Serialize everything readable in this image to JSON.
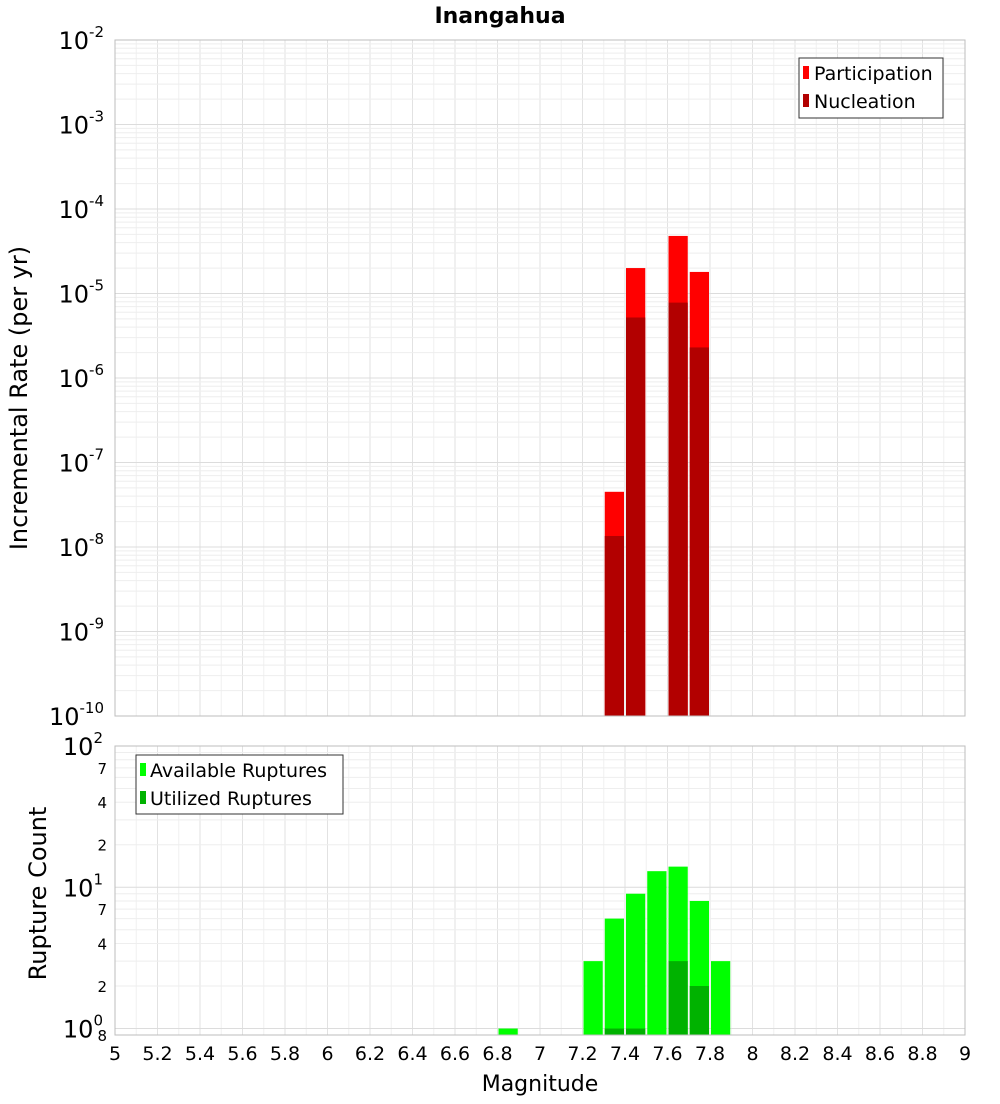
{
  "chart_data": [
    {
      "type": "bar",
      "title": "Inangahua",
      "xlabel": "",
      "ylabel": "Incremental Rate (per yr)",
      "y_scale": "log",
      "ylim": [
        1e-10,
        0.01
      ],
      "xlim": [
        5,
        9
      ],
      "y_tick_exponents": [
        "-2",
        "-3",
        "-4",
        "-5",
        "-6",
        "-7",
        "-8",
        "-9",
        "-10"
      ],
      "y_tick_base": "10",
      "legend_position": "top-right",
      "overlay": true,
      "bin_width": 0.1,
      "series": [
        {
          "name": "Participation",
          "color": "#ff0000",
          "points": [
            {
              "x": 7.35,
              "y": 4.5e-08
            },
            {
              "x": 7.45,
              "y": 2e-05
            },
            {
              "x": 7.65,
              "y": 4.8e-05
            },
            {
              "x": 7.75,
              "y": 1.8e-05
            }
          ]
        },
        {
          "name": "Nucleation",
          "color": "#b20000",
          "points": [
            {
              "x": 7.35,
              "y": 1.35e-08
            },
            {
              "x": 7.45,
              "y": 5.2e-06
            },
            {
              "x": 7.65,
              "y": 7.8e-06
            },
            {
              "x": 7.75,
              "y": 2.3e-06
            }
          ]
        }
      ]
    },
    {
      "type": "bar",
      "title": "",
      "xlabel": "Magnitude",
      "ylabel": "Rupture Count",
      "y_scale": "log",
      "ylim": [
        0.9,
        100
      ],
      "xlim": [
        5,
        9
      ],
      "x_ticks": [
        "5",
        "5.2",
        "5.4",
        "5.6",
        "5.8",
        "6",
        "6.2",
        "6.4",
        "6.6",
        "6.8",
        "7",
        "7.2",
        "7.4",
        "7.6",
        "7.8",
        "8",
        "8.2",
        "8.4",
        "8.6",
        "8.8",
        "9"
      ],
      "y_tick_labels": [
        {
          "value": 100,
          "base": "10",
          "exp": "2"
        },
        {
          "value": 10,
          "base": "10",
          "exp": "1"
        },
        {
          "value": 1,
          "base": "10",
          "exp": "0"
        }
      ],
      "y_minor_labels": [
        {
          "value": 70,
          "label": "7"
        },
        {
          "value": 40,
          "label": "4"
        },
        {
          "value": 20,
          "label": "2"
        },
        {
          "value": 7,
          "label": "7"
        },
        {
          "value": 4,
          "label": "4"
        },
        {
          "value": 2,
          "label": "2"
        },
        {
          "value": 0.9,
          "label": "8"
        }
      ],
      "legend_position": "top-left",
      "overlay": true,
      "bin_width": 0.1,
      "series": [
        {
          "name": "Available Ruptures",
          "color": "#00ff00",
          "points": [
            {
              "x": 6.85,
              "y": 1
            },
            {
              "x": 7.25,
              "y": 3
            },
            {
              "x": 7.35,
              "y": 6
            },
            {
              "x": 7.45,
              "y": 9
            },
            {
              "x": 7.55,
              "y": 13
            },
            {
              "x": 7.65,
              "y": 14
            },
            {
              "x": 7.75,
              "y": 8
            },
            {
              "x": 7.85,
              "y": 3
            }
          ]
        },
        {
          "name": "Utilized Ruptures",
          "color": "#00b200",
          "points": [
            {
              "x": 7.35,
              "y": 1
            },
            {
              "x": 7.45,
              "y": 1
            },
            {
              "x": 7.65,
              "y": 3
            },
            {
              "x": 7.75,
              "y": 2
            }
          ]
        }
      ]
    }
  ]
}
